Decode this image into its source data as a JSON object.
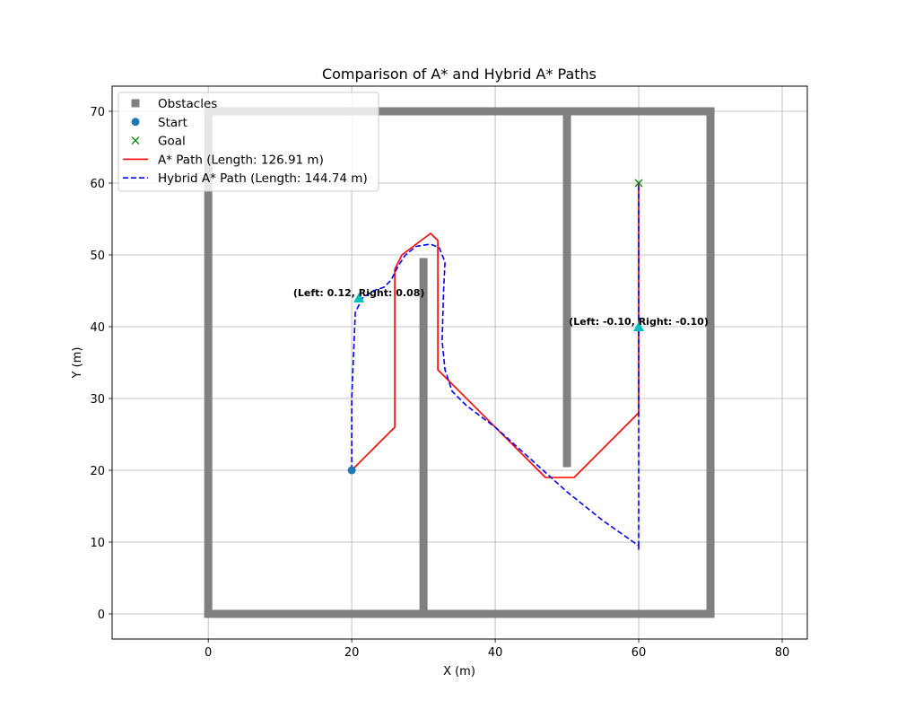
{
  "chart_data": {
    "type": "line",
    "title": "Comparison of A* and Hybrid A* Paths",
    "xlabel": "X (m)",
    "ylabel": "Y (m)",
    "xlim": [
      -13.4,
      83.5
    ],
    "ylim": [
      -3.5,
      73.5
    ],
    "xticks": [
      0,
      20,
      40,
      60,
      80
    ],
    "yticks": [
      0,
      10,
      20,
      30,
      40,
      50,
      60,
      70
    ],
    "grid": true,
    "legend_position": "top-left",
    "colors": {
      "obstacles": "#808080",
      "start": "#1f77b4",
      "goal": "#008000",
      "astar": "#ff0000",
      "hybrid": "#0000ff",
      "marker": "#00bfbf"
    },
    "obstacles": [
      {
        "x": [
          0,
          70
        ],
        "y": [
          0,
          0
        ]
      },
      {
        "x": [
          0,
          70
        ],
        "y": [
          70,
          70
        ]
      },
      {
        "x": [
          0,
          0
        ],
        "y": [
          0,
          70
        ]
      },
      {
        "x": [
          70,
          70
        ],
        "y": [
          0,
          70
        ]
      },
      {
        "x": [
          30,
          30
        ],
        "y": [
          0,
          49
        ]
      },
      {
        "x": [
          50,
          50
        ],
        "y": [
          21,
          70
        ]
      }
    ],
    "start": {
      "x": 20,
      "y": 20
    },
    "goal": {
      "x": 60,
      "y": 60
    },
    "series": [
      {
        "name": "A* Path (Length: 126.91 m)",
        "style": "solid",
        "x": [
          20,
          26,
          26,
          27,
          31,
          32,
          32,
          47,
          51,
          60,
          60
        ],
        "y": [
          20,
          26,
          48,
          50,
          53,
          52,
          34,
          19,
          19,
          28,
          60
        ]
      },
      {
        "name": "Hybrid A* Path (Length: 144.74 m)",
        "style": "dashed",
        "x": [
          20,
          20,
          20.5,
          21.5,
          23,
          24.5,
          25.5,
          26.5,
          27.5,
          29,
          31,
          32.2,
          33,
          32.8,
          32.6,
          33,
          34,
          36,
          40,
          45,
          50,
          55,
          60,
          60,
          60
        ],
        "y": [
          20,
          30,
          42,
          44,
          45,
          45.5,
          46.5,
          48.5,
          50,
          51.2,
          51.5,
          51,
          49,
          45,
          38,
          34,
          31,
          29,
          26,
          21.5,
          17,
          13,
          9.5,
          9,
          60
        ]
      }
    ],
    "markers": [
      {
        "x": 21,
        "y": 44,
        "label": "(Left: 0.12, Right: 0.08)"
      },
      {
        "x": 60,
        "y": 40,
        "label": "(Left: -0.10, Right: -0.10)"
      }
    ],
    "legend": {
      "obstacles": "Obstacles",
      "start": "Start",
      "goal": "Goal"
    }
  }
}
